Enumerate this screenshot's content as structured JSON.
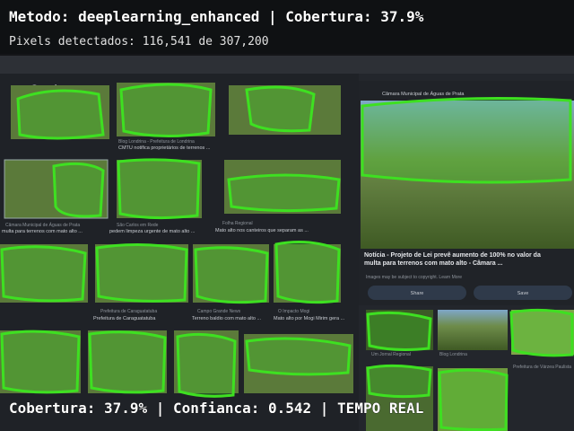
{
  "overlay": {
    "title": "Metodo: deeplearning_enhanced | Cobertura: 37.9%",
    "pixels": "Pixels detectados: 116,541 de 307,200",
    "footer": "Cobertura: 37.9% | Confianca: 0.542 | TEMPO REAL"
  },
  "screen": {
    "logo": "Google",
    "captions": [
      {
        "source": "Blog Londrina - Prefeitura de Londrina",
        "title": "CMTU notifica proprietários de terrenos ..."
      },
      {
        "source": "Câmara Municipal de Águas de Prata",
        "title": "multa para terrenos com mato alto ..."
      },
      {
        "source": "São Carlos em Rede",
        "title": "pedem limpeza urgente de mato alto ..."
      },
      {
        "source": "Folha Regional",
        "title": "Mato alto nos canteiros que separam as ..."
      },
      {
        "source": "Prefeitura de Caraguatatuba",
        "title": "Prefeitura de Caraguatatuba"
      },
      {
        "source": "Campo Grande News",
        "title": "Terreno baldio com mato alto ..."
      },
      {
        "source": "O Impacto Mogi",
        "title": "Mato alto por Mogi Mirim gera ..."
      }
    ],
    "panel": {
      "source": "Câmara Municipal de Águas de Prata",
      "headline": "Notícia - Projeto de Lei prevê aumento de 100% no valor da multa para terrenos com mato alto - Câmara ...",
      "copyright": "Images may be subject to copyright. Learn More",
      "share": "Share",
      "save": "Save",
      "related": [
        "Um Jornal Regional",
        "Blog Londrina",
        "Prefeitura de Várzea Paulista"
      ]
    }
  }
}
